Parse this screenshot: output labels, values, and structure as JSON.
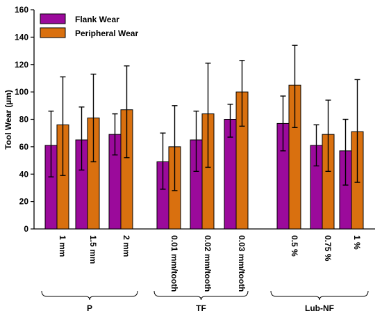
{
  "chart_data": {
    "type": "bar",
    "ylabel": "Tool Wear (µm)",
    "xlabel": "",
    "ylim": [
      0,
      160
    ],
    "yticks": [
      0,
      20,
      40,
      60,
      80,
      100,
      120,
      140,
      160
    ],
    "grid": false,
    "legend_position": "top-left",
    "categories": [
      "1 mm",
      "1.5 mm",
      "2 mm",
      "0.01 mm/tooth",
      "0.02 mm/tooth",
      "0.03 mm/tooth",
      "0.5 %",
      "0.75 %",
      "1 %"
    ],
    "groups": [
      {
        "label": "P",
        "categories": [
          0,
          1,
          2
        ]
      },
      {
        "label": "TF",
        "categories": [
          3,
          4,
          5
        ]
      },
      {
        "label": "Lub-NF",
        "categories": [
          6,
          7,
          8
        ]
      }
    ],
    "series": [
      {
        "name": "Flank Wear",
        "color": "#9b0a9b",
        "values": [
          61,
          65,
          69,
          49,
          65,
          80,
          77,
          61,
          57
        ],
        "error_low": [
          38,
          43,
          54,
          29,
          42,
          67,
          57,
          46,
          32
        ],
        "error_high": [
          86,
          89,
          84,
          70,
          86,
          91,
          97,
          76,
          80
        ]
      },
      {
        "name": "Peripheral Wear",
        "color": "#d9700f",
        "values": [
          76,
          81,
          87,
          60,
          84,
          100,
          105,
          69,
          71
        ],
        "error_low": [
          39,
          49,
          52,
          28,
          45,
          75,
          74,
          42,
          34
        ],
        "error_high": [
          111,
          113,
          119,
          90,
          121,
          123,
          134,
          94,
          109
        ]
      }
    ]
  }
}
